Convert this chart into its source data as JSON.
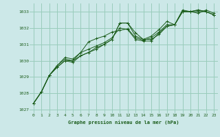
{
  "title": "Graphe pression niveau de la mer (hPa)",
  "background_color": "#cce8e8",
  "grid_color": "#99ccbb",
  "line_color": "#1a5c1a",
  "xlim": [
    -0.5,
    23.5
  ],
  "ylim": [
    1026.8,
    1033.5
  ],
  "xticks": [
    0,
    1,
    2,
    3,
    4,
    5,
    6,
    7,
    8,
    9,
    10,
    11,
    12,
    13,
    14,
    15,
    16,
    17,
    18,
    19,
    20,
    21,
    22,
    23
  ],
  "yticks": [
    1027,
    1028,
    1029,
    1030,
    1031,
    1032,
    1033
  ],
  "series": [
    [
      1027.4,
      1028.1,
      1029.1,
      1029.6,
      1030.0,
      1029.9,
      1030.3,
      1030.5,
      1030.8,
      1031.0,
      1031.3,
      1032.3,
      1032.3,
      1031.5,
      1031.3,
      1031.3,
      1031.6,
      1032.1,
      1032.2,
      1033.0,
      1033.0,
      1033.0,
      1033.0,
      1032.8
    ],
    [
      1027.4,
      1028.1,
      1029.1,
      1029.7,
      1030.1,
      1030.0,
      1030.5,
      1031.15,
      1031.35,
      1031.5,
      1031.75,
      1031.85,
      1031.95,
      1031.4,
      1031.25,
      1031.4,
      1031.75,
      1032.2,
      1032.2,
      1033.1,
      1033.0,
      1033.1,
      1033.0,
      1032.8
    ],
    [
      1027.4,
      1028.1,
      1029.1,
      1029.7,
      1030.2,
      1030.1,
      1030.5,
      1030.7,
      1030.9,
      1031.1,
      1031.4,
      1032.0,
      1031.9,
      1031.3,
      1031.2,
      1031.2,
      1031.7,
      1032.1,
      1032.2,
      1033.0,
      1033.0,
      1033.1,
      1033.0,
      1032.8
    ],
    [
      1027.4,
      1028.1,
      1029.1,
      1029.6,
      1030.0,
      1030.0,
      1030.3,
      1030.5,
      1030.7,
      1031.0,
      1031.3,
      1032.3,
      1032.3,
      1031.7,
      1031.3,
      1031.5,
      1031.9,
      1032.4,
      1032.2,
      1033.0,
      1033.0,
      1032.9,
      1033.1,
      1032.9
    ]
  ]
}
